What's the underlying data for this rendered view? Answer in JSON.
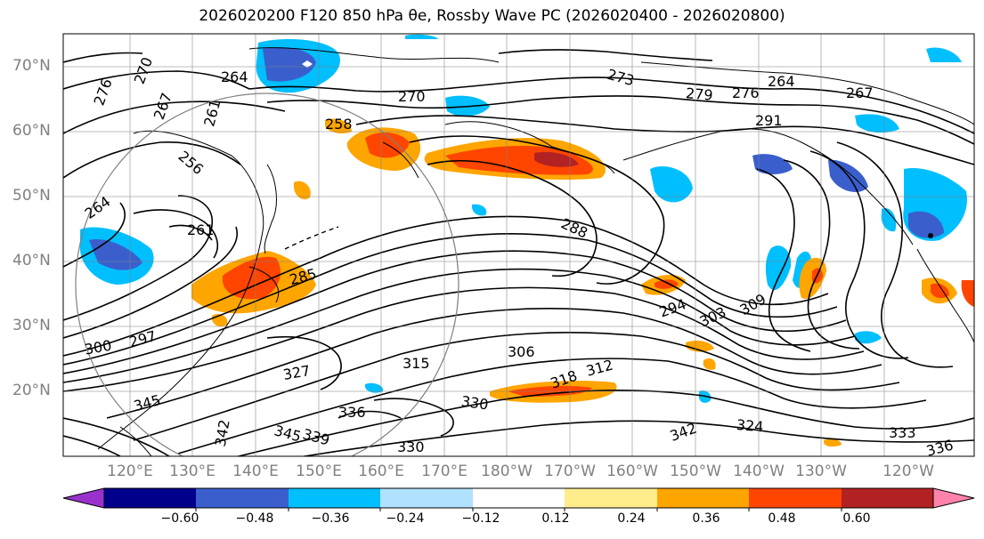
{
  "title": "2026020200 F120 850 hPa θe, Rossby Wave PC (2026020400 - 2026020800)",
  "map": {
    "lat_labels": [
      "70°N",
      "60°N",
      "50°N",
      "40°N",
      "30°N",
      "20°N"
    ],
    "lon_labels": [
      "120°E",
      "130°E",
      "140°E",
      "150°E",
      "160°E",
      "170°E",
      "180°W",
      "170°W",
      "160°W",
      "150°W",
      "140°W",
      "130°W",
      "120°W"
    ],
    "contour_labels": [
      "276",
      "270",
      "267",
      "261",
      "264",
      "256",
      "258",
      "264",
      "261",
      "270",
      "273",
      "279",
      "276",
      "264",
      "267",
      "291",
      "288",
      "285",
      "294",
      "303",
      "309",
      "300",
      "297",
      "327",
      "315",
      "306",
      "312",
      "318",
      "324",
      "330",
      "336",
      "342",
      "345",
      "339",
      "330",
      "333",
      "336",
      "345",
      "342"
    ]
  },
  "colorbar": {
    "ticks": [
      "−0.60",
      "−0.48",
      "−0.36",
      "−0.24",
      "−0.12",
      "0.12",
      "0.24",
      "0.36",
      "0.48",
      "0.60"
    ],
    "colors": [
      "#9932cc",
      "#00008b",
      "#3a5fcd",
      "#00bfff",
      "#b0e2ff",
      "#ffffff",
      "#ffec8b",
      "#ffa500",
      "#ff4500",
      "#b22222",
      "#ff82ab"
    ]
  }
}
